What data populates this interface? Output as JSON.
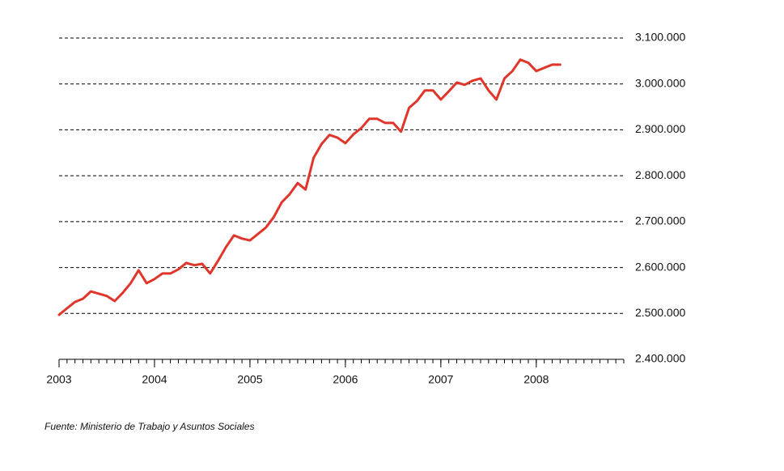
{
  "chart_data": {
    "type": "line",
    "source": "Fuente: Ministerio de Trabajo y Asuntos Sociales",
    "x": [
      2003,
      2003.083,
      2003.167,
      2003.25,
      2003.333,
      2003.417,
      2003.5,
      2003.583,
      2003.667,
      2003.75,
      2003.833,
      2003.917,
      2004,
      2004.083,
      2004.167,
      2004.25,
      2004.333,
      2004.417,
      2004.5,
      2004.583,
      2004.667,
      2004.75,
      2004.833,
      2004.917,
      2005,
      2005.083,
      2005.167,
      2005.25,
      2005.333,
      2005.417,
      2005.5,
      2005.583,
      2005.667,
      2005.75,
      2005.833,
      2005.917,
      2006,
      2006.083,
      2006.167,
      2006.25,
      2006.333,
      2006.417,
      2006.5,
      2006.583,
      2006.667,
      2006.75,
      2006.833,
      2006.917,
      2007,
      2007.083,
      2007.167,
      2007.25,
      2007.333,
      2007.417,
      2007.5,
      2007.583,
      2007.667,
      2007.75,
      2007.833,
      2007.917,
      2008,
      2008.083,
      2008.167,
      2008.25
    ],
    "values": [
      2497000,
      2511000,
      2525000,
      2532000,
      2548000,
      2543000,
      2538000,
      2527000,
      2545000,
      2566000,
      2594000,
      2566000,
      2575000,
      2587000,
      2587000,
      2596000,
      2610000,
      2605000,
      2608000,
      2587000,
      2615000,
      2645000,
      2670000,
      2663000,
      2659000,
      2673000,
      2687000,
      2710000,
      2742000,
      2760000,
      2784000,
      2770000,
      2839000,
      2869000,
      2889000,
      2883000,
      2871000,
      2890000,
      2904000,
      2924000,
      2924000,
      2915000,
      2915000,
      2896000,
      2948000,
      2963000,
      2986000,
      2986000,
      2966000,
      2984000,
      3003000,
      2998000,
      3007000,
      3012000,
      2986000,
      2966000,
      3012000,
      3028000,
      3053000,
      3046000,
      3028000,
      3035000,
      3042000,
      3042000
    ],
    "color": "#e0352b",
    "xlim": [
      2003,
      2008.917
    ],
    "xticks": [
      2003,
      2004,
      2005,
      2006,
      2007,
      2008
    ],
    "ylim": [
      2400000,
      3100000
    ],
    "yticks": [
      {
        "value": 2400000,
        "label": "2.400.000"
      },
      {
        "value": 2500000,
        "label": "2.500.000"
      },
      {
        "value": 2600000,
        "label": "2.600.000"
      },
      {
        "value": 2700000,
        "label": "2.700.000"
      },
      {
        "value": 2800000,
        "label": "2.800.000"
      },
      {
        "value": 2900000,
        "label": "2.900.000"
      },
      {
        "value": 3000000,
        "label": "3.000.000"
      },
      {
        "value": 3100000,
        "label": "3.100.000"
      }
    ],
    "grid": true
  }
}
